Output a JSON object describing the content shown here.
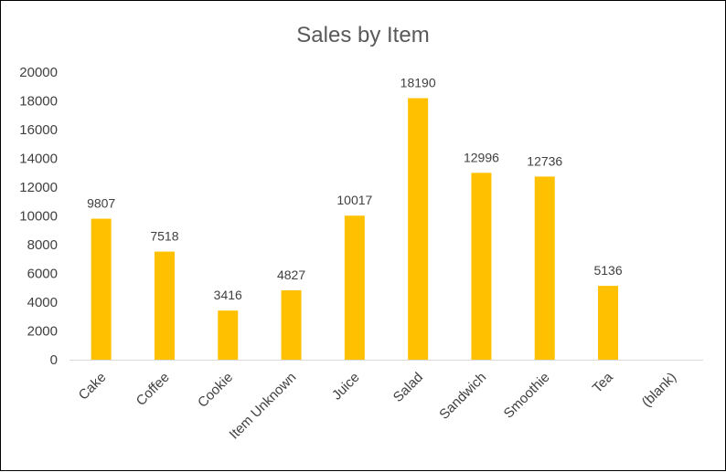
{
  "chart_data": {
    "type": "bar",
    "title": "Sales by Item",
    "xlabel": "",
    "ylabel": "",
    "categories": [
      "Cake",
      "Coffee",
      "Cookie",
      "Item Unknown",
      "Juice",
      "Salad",
      "Sandwich",
      "Smoothie",
      "Tea",
      "(blank)"
    ],
    "values": [
      9807,
      7518,
      3416,
      4827,
      10017,
      18190,
      12996,
      12736,
      5136,
      null
    ],
    "data_labels": [
      "9807",
      "7518",
      "3416",
      "4827",
      "10017",
      "18190",
      "12996",
      "12736",
      "5136",
      ""
    ],
    "ylim": [
      0,
      20000
    ],
    "yticks": [
      "0",
      "2000",
      "4000",
      "6000",
      "8000",
      "10000",
      "12000",
      "14000",
      "16000",
      "18000",
      "20000"
    ],
    "grid": false,
    "legend": "none",
    "colors": {
      "bar": "#FFC000",
      "axis": "#D9D9D9"
    }
  }
}
